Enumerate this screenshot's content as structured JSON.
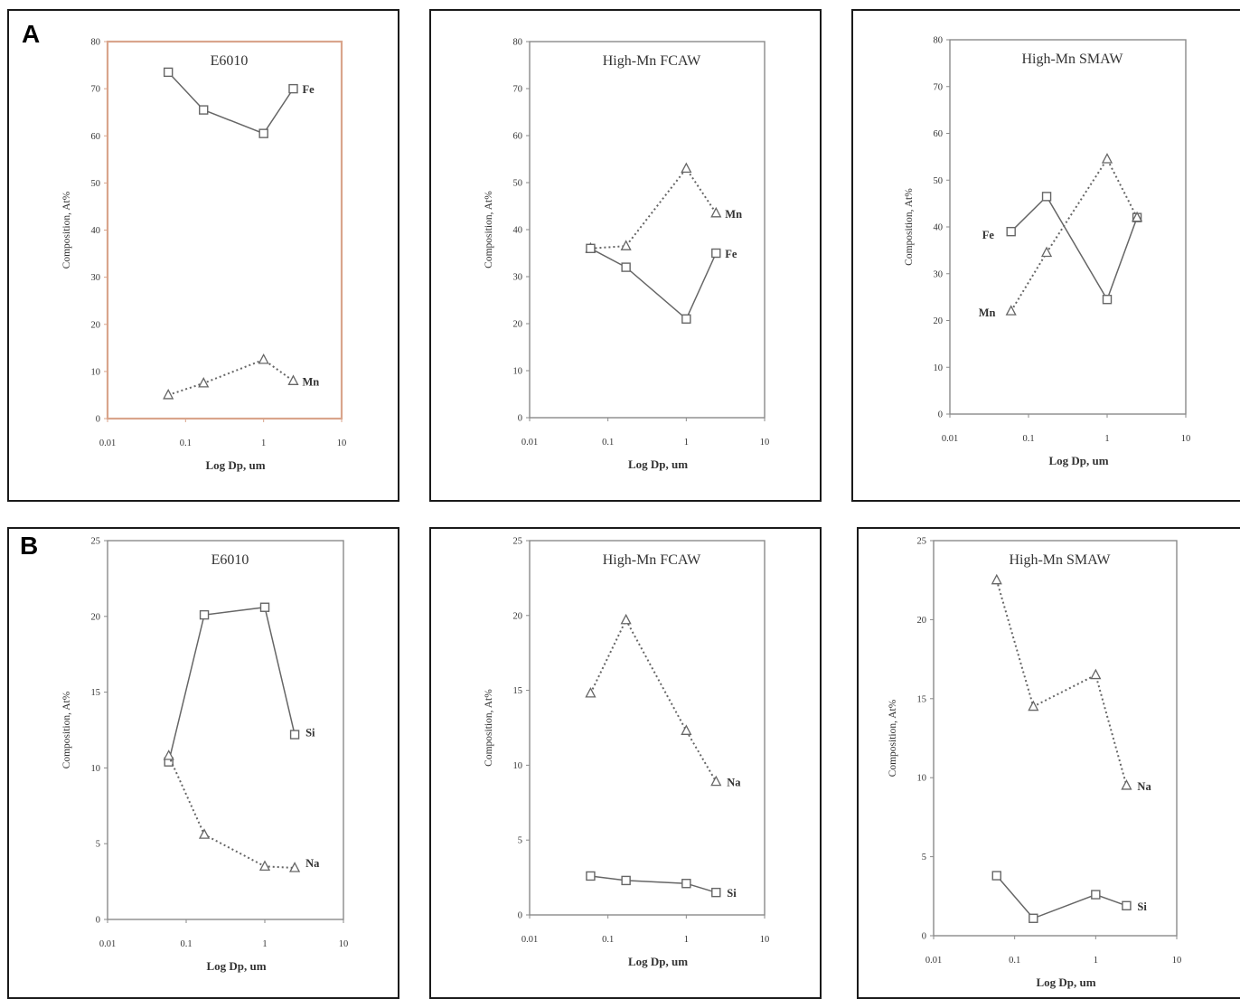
{
  "row_labels": [
    "A",
    "B"
  ],
  "colors": {
    "axis": "#8a8a8a",
    "axis_e6010": "#d9a58c",
    "series": "#666666",
    "text": "#333333"
  },
  "chart_data": [
    {
      "type": "line",
      "title": "E6010",
      "xlabel": "Log Dp, um",
      "ylabel": "Composition, At%",
      "xscale": "log",
      "xlim": [
        0.01,
        10
      ],
      "xticks": [
        "0.01",
        "0.1",
        "1",
        "10"
      ],
      "ylim": [
        0,
        80
      ],
      "yticks": [
        "0",
        "10",
        "20",
        "30",
        "40",
        "50",
        "60",
        "70",
        "80"
      ],
      "x": [
        0.06,
        0.17,
        1.0,
        2.4
      ],
      "series": [
        {
          "name": "Fe",
          "marker": "square",
          "line": "solid",
          "values": [
            73.5,
            65.5,
            60.5,
            70
          ]
        },
        {
          "name": "Mn",
          "marker": "triangle",
          "line": "dotted",
          "values": [
            5,
            7.5,
            12.5,
            8
          ]
        }
      ]
    },
    {
      "type": "line",
      "title": "High-Mn FCAW",
      "xlabel": "Log Dp, um",
      "ylabel": "Composition, At%",
      "xscale": "log",
      "xlim": [
        0.01,
        10
      ],
      "xticks": [
        "0.01",
        "0.1",
        "1",
        "10"
      ],
      "ylim": [
        0,
        80
      ],
      "yticks": [
        "0",
        "10",
        "20",
        "30",
        "40",
        "50",
        "60",
        "70",
        "80"
      ],
      "x": [
        0.06,
        0.17,
        1.0,
        2.4
      ],
      "series": [
        {
          "name": "Mn",
          "marker": "triangle",
          "line": "dotted",
          "values": [
            36,
            36.5,
            53,
            43.5
          ]
        },
        {
          "name": "Fe",
          "marker": "square",
          "line": "solid",
          "values": [
            36,
            32,
            21,
            35
          ]
        }
      ]
    },
    {
      "type": "line",
      "title": "High-Mn SMAW",
      "xlabel": "Log Dp, um",
      "ylabel": "Composition, At%",
      "xscale": "log",
      "xlim": [
        0.01,
        10
      ],
      "xticks": [
        "0.01",
        "0.1",
        "1",
        "10"
      ],
      "ylim": [
        0,
        80
      ],
      "yticks": [
        "0",
        "10",
        "20",
        "30",
        "40",
        "50",
        "60",
        "70",
        "80"
      ],
      "x": [
        0.06,
        0.17,
        1.0,
        2.4
      ],
      "series": [
        {
          "name": "Fe",
          "marker": "square",
          "line": "solid",
          "values": [
            39,
            46.5,
            24.5,
            42
          ]
        },
        {
          "name": "Mn",
          "marker": "triangle",
          "line": "dotted",
          "values": [
            22,
            34.5,
            54.5,
            42
          ]
        }
      ]
    },
    {
      "type": "line",
      "title": "E6010",
      "xlabel": "Log Dp, um",
      "ylabel": "Composition, At%",
      "xscale": "log",
      "xlim": [
        0.01,
        10
      ],
      "xticks": [
        "0.01",
        "0.1",
        "1",
        "10"
      ],
      "ylim": [
        0,
        25
      ],
      "yticks": [
        "0",
        "5",
        "10",
        "15",
        "20",
        "25"
      ],
      "x": [
        0.06,
        0.17,
        1.0,
        2.4
      ],
      "series": [
        {
          "name": "Si",
          "marker": "square",
          "line": "solid",
          "values": [
            10.4,
            20.1,
            20.6,
            12.2
          ]
        },
        {
          "name": "Na",
          "marker": "triangle",
          "line": "dotted",
          "values": [
            10.8,
            5.6,
            3.5,
            3.4
          ]
        }
      ]
    },
    {
      "type": "line",
      "title": "High-Mn FCAW",
      "xlabel": "Log Dp, um",
      "ylabel": "Composition, At%",
      "xscale": "log",
      "xlim": [
        0.01,
        10
      ],
      "xticks": [
        "0.01",
        "0.1",
        "1",
        "10"
      ],
      "ylim": [
        0,
        25
      ],
      "yticks": [
        "0",
        "5",
        "10",
        "15",
        "20",
        "25"
      ],
      "x": [
        0.06,
        0.17,
        1.0,
        2.4
      ],
      "series": [
        {
          "name": "Na",
          "marker": "triangle",
          "line": "dotted",
          "values": [
            14.8,
            19.7,
            12.3,
            8.9
          ]
        },
        {
          "name": "Si",
          "marker": "square",
          "line": "solid",
          "values": [
            2.6,
            2.3,
            2.1,
            1.5
          ]
        }
      ]
    },
    {
      "type": "line",
      "title": "High-Mn SMAW",
      "xlabel": "Log Dp, um",
      "ylabel": "Composition, At%",
      "xscale": "log",
      "xlim": [
        0.01,
        10
      ],
      "xticks": [
        "0.01",
        "0.1",
        "1",
        "10"
      ],
      "ylim": [
        0,
        25
      ],
      "yticks": [
        "0",
        "5",
        "10",
        "15",
        "20",
        "25"
      ],
      "x": [
        0.06,
        0.17,
        1.0,
        2.4
      ],
      "series": [
        {
          "name": "Na",
          "marker": "triangle",
          "line": "dotted",
          "values": [
            22.5,
            14.5,
            16.5,
            9.5
          ]
        },
        {
          "name": "Si",
          "marker": "square",
          "line": "solid",
          "values": [
            3.8,
            1.1,
            2.6,
            1.9
          ]
        }
      ]
    }
  ]
}
